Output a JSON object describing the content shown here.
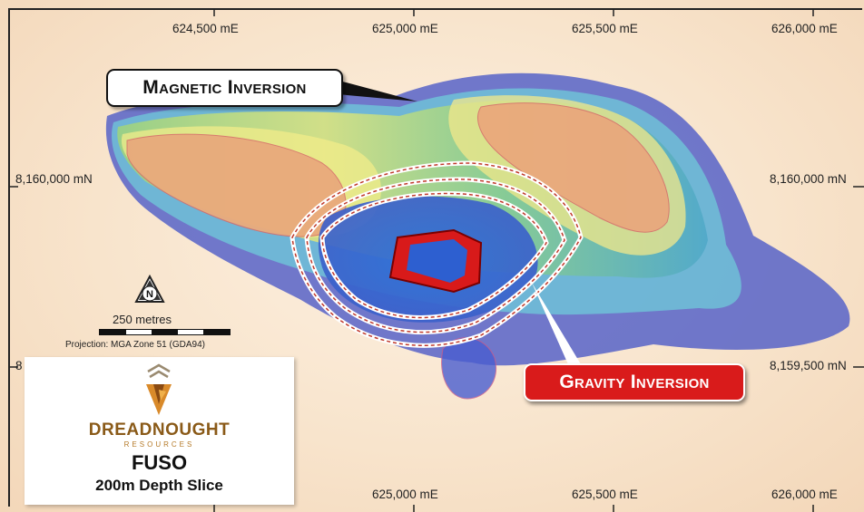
{
  "map": {
    "coords_top": [
      "624,500 mE",
      "625,000 mE",
      "625,500 mE",
      "626,000 mE"
    ],
    "coords_bottom": [
      "625,000 mE",
      "625,500 mE",
      "626,000 mE"
    ],
    "coords_left": [
      "8,160,000 mN",
      "8"
    ],
    "coords_right": [
      "8,160,000 mN",
      "8,159,500 mN"
    ],
    "callouts": {
      "magnetic": "Magnetic Inversion",
      "gravity": "Gravity Inversion"
    },
    "scale": {
      "label": "250 metres",
      "projection": "Projection: MGA Zone 51 (GDA94)"
    },
    "north_arrow": "N",
    "colors": {
      "gravity_red": "#d91b1b",
      "brand_gold": "#8a5a18",
      "background": "#f8e4cc"
    }
  },
  "legend": {
    "brand_name": "DREADNOUGHT",
    "brand_sub": "RESOURCES",
    "project": "FUSO",
    "depth_label": "200m Depth Slice"
  }
}
